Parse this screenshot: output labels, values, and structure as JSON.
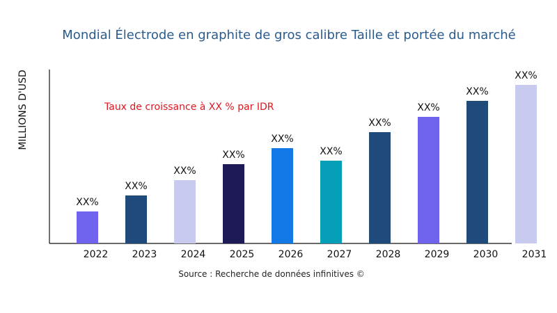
{
  "chart_data": {
    "type": "bar",
    "title": "Mondial Électrode en graphite de gros calibre Taille et portée du marché",
    "xlabel": "",
    "ylabel": "MILLIONS D'USD",
    "categories": [
      "2022",
      "2023",
      "2024",
      "2025",
      "2026",
      "2027",
      "2028",
      "2029",
      "2030",
      "2031"
    ],
    "values": [
      46,
      69,
      91,
      114,
      137,
      119,
      160,
      182,
      205,
      228
    ],
    "data_labels": [
      "XX%",
      "XX%",
      "XX%",
      "XX%",
      "XX%",
      "XX%",
      "XX%",
      "XX%",
      "XX%",
      "XX%"
    ],
    "colors": [
      "#7063ee",
      "#1f4a7a",
      "#c9caf0",
      "#1e1a57",
      "#1279e6",
      "#05a0b8",
      "#1f4a7a",
      "#7063ee",
      "#1f4a7a",
      "#c9caf0"
    ],
    "ylim": [
      0,
      250
    ],
    "grid": false,
    "annotation": "Taux de croissance à XX % par IDR",
    "source": "Source : Recherche de données infinitives ©"
  }
}
